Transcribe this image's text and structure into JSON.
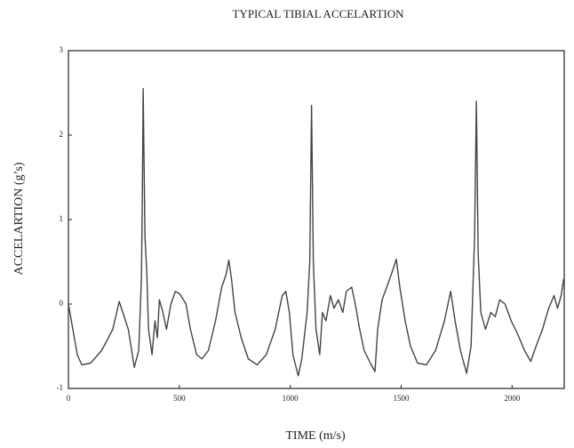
{
  "chart_data": {
    "type": "line",
    "title": "TYPICAL TIBIAL ACCELARTION",
    "x_label": "TIME (m/s)",
    "y_label": "ACCELARTION (g’s)",
    "color": "#444444",
    "xlim": [
      0,
      2235
    ],
    "ylim": [
      -1,
      3
    ],
    "xticks": [
      0,
      500,
      1000,
      1500,
      2000
    ],
    "yticks": [
      -1,
      0,
      1,
      2,
      3
    ],
    "grid": false,
    "x": [
      0,
      20,
      40,
      60,
      100,
      150,
      200,
      229,
      270,
      297,
      317,
      329,
      333,
      337,
      345,
      353,
      361,
      377,
      390,
      401,
      410,
      426,
      442,
      462,
      482,
      502,
      530,
      550,
      578,
      602,
      631,
      663,
      691,
      711,
      723,
      735,
      751,
      779,
      811,
      851,
      892,
      932,
      964,
      980,
      996,
      1012,
      1036,
      1052,
      1076,
      1088,
      1096,
      1104,
      1116,
      1133,
      1145,
      1161,
      1181,
      1197,
      1217,
      1237,
      1253,
      1277,
      1293,
      1313,
      1333,
      1361,
      1382,
      1394,
      1414,
      1442,
      1462,
      1478,
      1494,
      1518,
      1542,
      1574,
      1614,
      1655,
      1695,
      1723,
      1743,
      1767,
      1795,
      1815,
      1831,
      1839,
      1847,
      1859,
      1880,
      1904,
      1924,
      1944,
      1968,
      1996,
      2024,
      2056,
      2084,
      2108,
      2137,
      2165,
      2189,
      2205,
      2221,
      2233
    ],
    "values": [
      0,
      -0.3,
      -0.6,
      -0.72,
      -0.7,
      -0.55,
      -0.3,
      0.03,
      -0.3,
      -0.75,
      -0.55,
      0.3,
      1.2,
      2.55,
      0.8,
      0.4,
      -0.3,
      -0.6,
      -0.2,
      -0.4,
      0.05,
      -0.1,
      -0.3,
      0,
      0.15,
      0.12,
      0,
      -0.3,
      -0.6,
      -0.65,
      -0.55,
      -0.2,
      0.2,
      0.35,
      0.52,
      0.3,
      -0.1,
      -0.4,
      -0.65,
      -0.72,
      -0.6,
      -0.3,
      0.1,
      0.15,
      -0.1,
      -0.6,
      -0.85,
      -0.65,
      -0.1,
      0.5,
      2.35,
      0.5,
      -0.3,
      -0.6,
      -0.1,
      -0.2,
      0.1,
      -0.05,
      0.05,
      -0.1,
      0.15,
      0.2,
      0,
      -0.3,
      -0.55,
      -0.7,
      -0.8,
      -0.3,
      0.05,
      0.25,
      0.4,
      0.53,
      0.2,
      -0.2,
      -0.5,
      -0.7,
      -0.72,
      -0.55,
      -0.2,
      0.15,
      -0.2,
      -0.55,
      -0.82,
      -0.5,
      0.8,
      2.4,
      0.6,
      -0.1,
      -0.3,
      -0.1,
      -0.15,
      0.05,
      0,
      -0.2,
      -0.35,
      -0.55,
      -0.68,
      -0.5,
      -0.3,
      -0.05,
      0.1,
      -0.05,
      0.1,
      0.3
    ]
  }
}
